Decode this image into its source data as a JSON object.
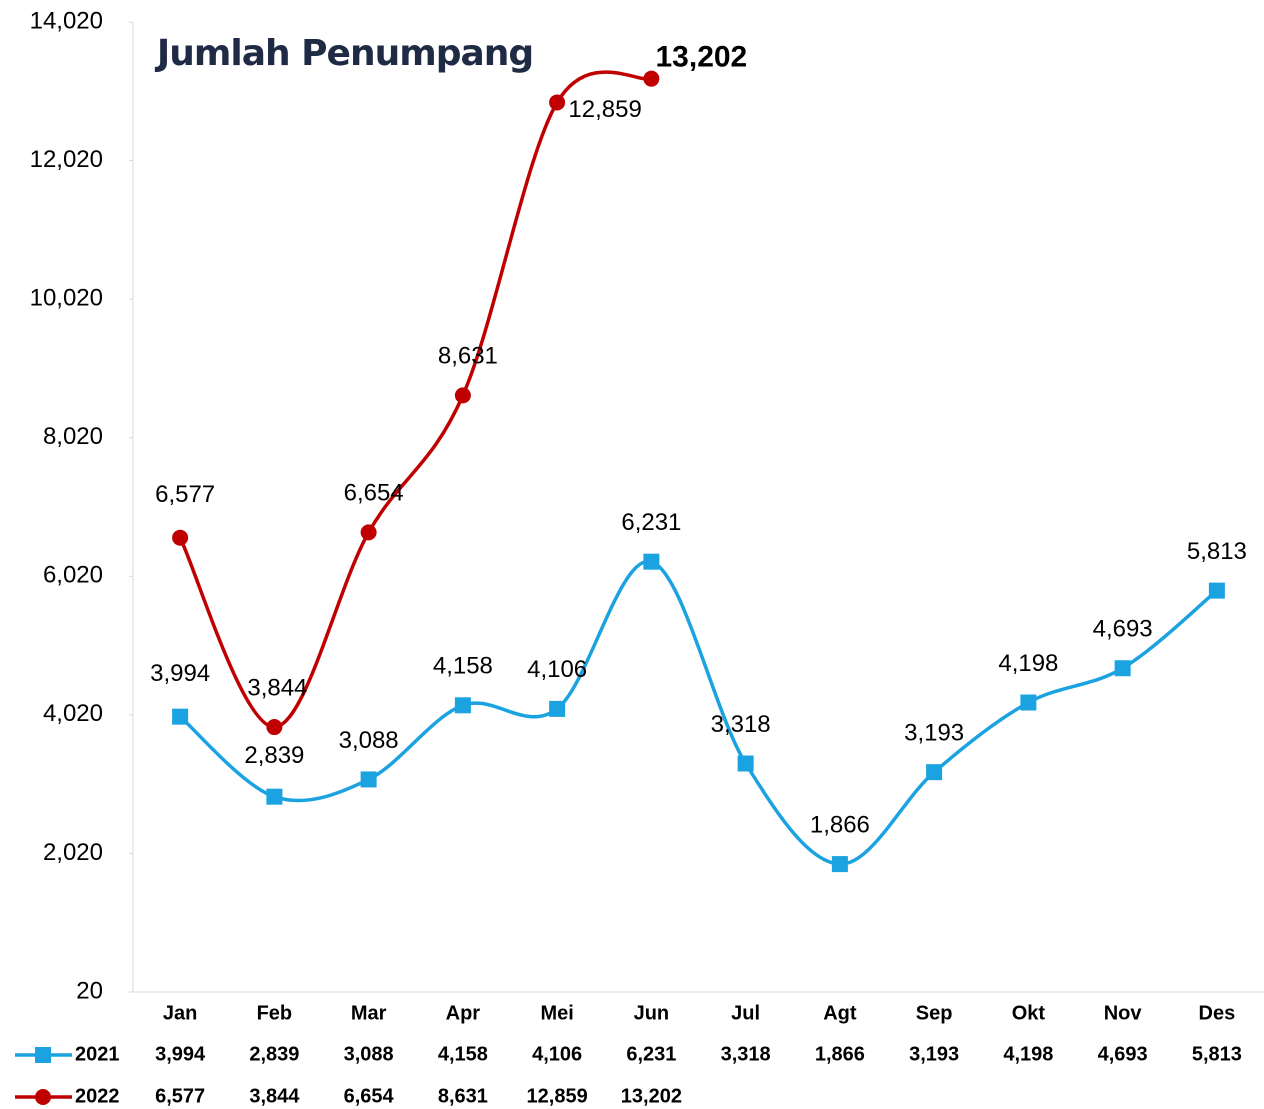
{
  "chart_data": {
    "type": "line",
    "title": "Jumlah Penumpang",
    "categories": [
      "Jan",
      "Feb",
      "Mar",
      "Apr",
      "Mei",
      "Jun",
      "Jul",
      "Agt",
      "Sep",
      "Okt",
      "Nov",
      "Des"
    ],
    "series": [
      {
        "name": "2021",
        "color": "#1aa3e0",
        "marker": "square",
        "values": [
          3994,
          2839,
          3088,
          4158,
          4106,
          6231,
          3318,
          1866,
          3193,
          4198,
          4693,
          5813
        ],
        "value_labels": [
          "3,994",
          "2,839",
          "3,088",
          "4,158",
          "4,106",
          "6,231",
          "3,318",
          "1,866",
          "3,193",
          "4,198",
          "4,693",
          "5,813"
        ]
      },
      {
        "name": "2022",
        "color": "#c00000",
        "marker": "circle",
        "values": [
          6577,
          3844,
          6654,
          8631,
          12859,
          13202,
          null,
          null,
          null,
          null,
          null,
          null
        ],
        "value_labels": [
          "6,577",
          "3,844",
          "6,654",
          "8,631",
          "12,859",
          "13,202",
          null,
          null,
          null,
          null,
          null,
          null
        ]
      }
    ],
    "ylim": [
      20,
      14020
    ],
    "yticks": [
      20,
      {
        "value": 2020,
        "label": "2,020"
      },
      {
        "value": 4020,
        "label": "4,020"
      },
      {
        "value": 6020,
        "label": "6,020"
      },
      {
        "value": 8020,
        "label": "8,020"
      },
      {
        "value": 10020,
        "label": "10,020"
      },
      {
        "value": 12020,
        "label": "12,020"
      },
      {
        "value": 14020,
        "label": "14,020"
      }
    ],
    "grid": false,
    "smooth": true,
    "data_table": true
  }
}
